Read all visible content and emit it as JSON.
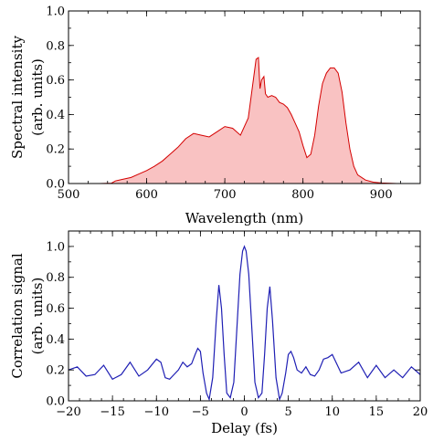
{
  "chart_data": [
    {
      "type": "area",
      "xlabel": "Wavelength (nm)",
      "ylabel": "Spectral intensity",
      "ylabel_line2": "(arb. units)",
      "xlim": [
        500,
        950
      ],
      "ylim": [
        0,
        1.0
      ],
      "x_ticks": [
        500,
        600,
        700,
        800,
        900
      ],
      "y_ticks": [
        "0.0",
        "0.2",
        "0.4",
        "0.6",
        "0.8",
        "1.0"
      ],
      "line_color": "#d40000",
      "fill_color": "#f9c2c2",
      "series": [
        {
          "x": [
            500,
            540,
            555,
            560,
            570,
            580,
            590,
            600,
            610,
            620,
            630,
            640,
            650,
            660,
            670,
            680,
            690,
            700,
            710,
            720,
            730,
            735,
            740,
            743,
            745,
            747,
            750,
            752,
            755,
            760,
            765,
            770,
            775,
            780,
            785,
            790,
            795,
            800,
            805,
            810,
            815,
            820,
            825,
            830,
            835,
            840,
            845,
            850,
            855,
            860,
            865,
            870,
            880,
            890,
            900,
            920,
            950
          ],
          "y": [
            0,
            0,
            0.002,
            0.015,
            0.025,
            0.035,
            0.055,
            0.075,
            0.1,
            0.13,
            0.17,
            0.21,
            0.26,
            0.29,
            0.28,
            0.27,
            0.3,
            0.33,
            0.32,
            0.28,
            0.38,
            0.55,
            0.72,
            0.73,
            0.55,
            0.6,
            0.62,
            0.52,
            0.5,
            0.51,
            0.5,
            0.47,
            0.46,
            0.44,
            0.4,
            0.35,
            0.3,
            0.22,
            0.15,
            0.17,
            0.28,
            0.45,
            0.58,
            0.64,
            0.67,
            0.67,
            0.64,
            0.53,
            0.35,
            0.2,
            0.1,
            0.05,
            0.02,
            0.008,
            0.003,
            0,
            0
          ]
        }
      ]
    },
    {
      "type": "line",
      "xlabel": "Delay (fs)",
      "ylabel": "Correlation signal",
      "ylabel_line2": "(arb. units)",
      "xlim": [
        -20,
        20
      ],
      "ylim": [
        0,
        1.1
      ],
      "x_ticks": [
        "−20",
        "−15",
        "−10",
        "−5",
        "0",
        "5",
        "10",
        "15",
        "20"
      ],
      "y_ticks": [
        "0.0",
        "0.2",
        "0.4",
        "0.6",
        "0.8",
        "1.0"
      ],
      "line_color": "#1f1fb4",
      "series": [
        {
          "x": [
            -20,
            -19,
            -18,
            -17,
            -16,
            -15,
            -14,
            -13,
            -12,
            -11,
            -10,
            -9.5,
            -9,
            -8.5,
            -8,
            -7.5,
            -7,
            -6.5,
            -6,
            -5.6,
            -5.3,
            -5,
            -4.7,
            -4.3,
            -4,
            -3.6,
            -3.2,
            -2.9,
            -2.6,
            -2.3,
            -2,
            -1.6,
            -1.2,
            -0.9,
            -0.5,
            -0.2,
            0,
            0.2,
            0.5,
            0.9,
            1.2,
            1.6,
            2,
            2.3,
            2.6,
            2.9,
            3.2,
            3.6,
            4,
            4.3,
            4.7,
            5,
            5.3,
            5.6,
            6,
            6.5,
            7,
            7.5,
            8,
            8.5,
            9,
            9.5,
            10,
            11,
            12,
            13,
            14,
            15,
            16,
            17,
            18,
            19,
            20
          ],
          "y": [
            0.2,
            0.22,
            0.16,
            0.17,
            0.23,
            0.14,
            0.17,
            0.25,
            0.16,
            0.2,
            0.27,
            0.25,
            0.15,
            0.14,
            0.17,
            0.2,
            0.25,
            0.22,
            0.24,
            0.3,
            0.34,
            0.32,
            0.18,
            0.05,
            0.01,
            0.15,
            0.52,
            0.75,
            0.6,
            0.3,
            0.05,
            0.02,
            0.12,
            0.42,
            0.82,
            0.97,
            1.0,
            0.97,
            0.82,
            0.42,
            0.12,
            0.02,
            0.05,
            0.3,
            0.6,
            0.74,
            0.52,
            0.15,
            0.01,
            0.05,
            0.18,
            0.3,
            0.32,
            0.28,
            0.2,
            0.18,
            0.22,
            0.17,
            0.16,
            0.2,
            0.27,
            0.28,
            0.3,
            0.18,
            0.2,
            0.25,
            0.15,
            0.23,
            0.15,
            0.2,
            0.15,
            0.22,
            0.17
          ]
        }
      ]
    }
  ]
}
